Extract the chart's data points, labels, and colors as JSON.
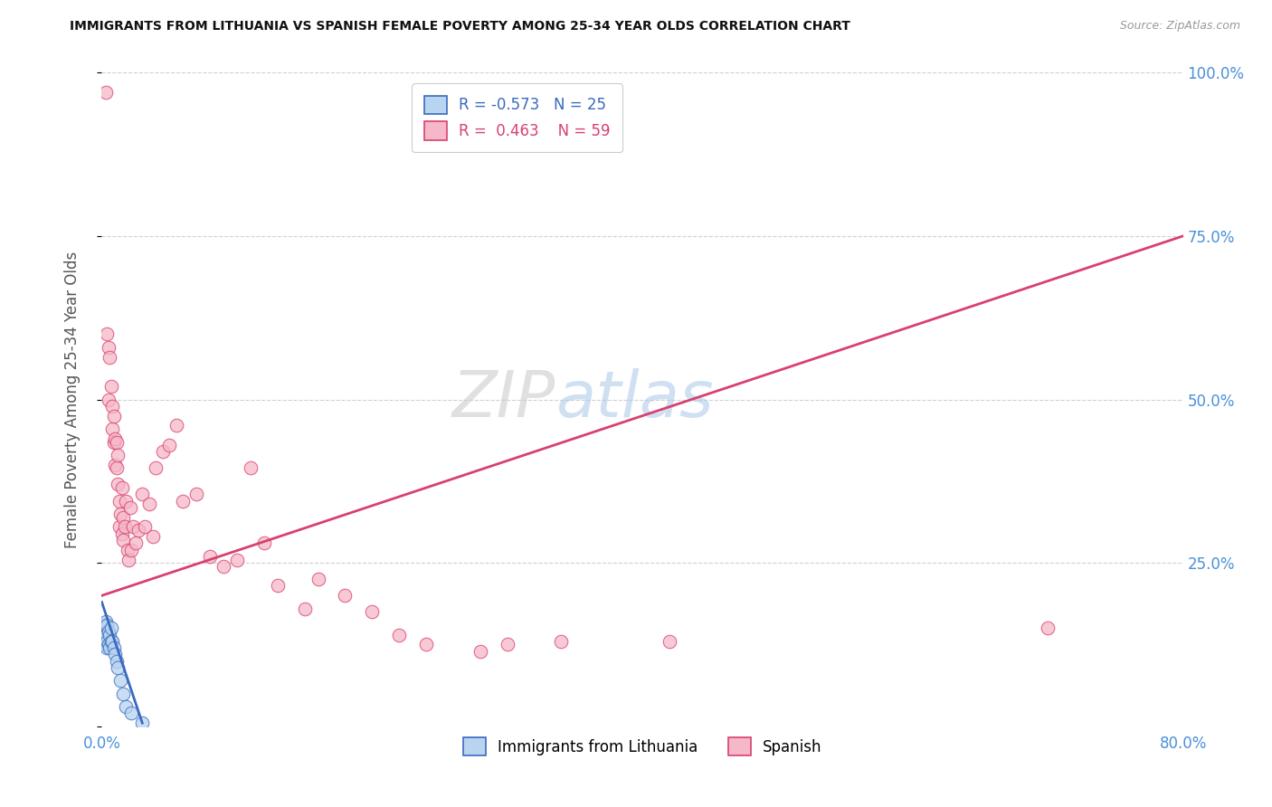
{
  "title": "IMMIGRANTS FROM LITHUANIA VS SPANISH FEMALE POVERTY AMONG 25-34 YEAR OLDS CORRELATION CHART",
  "source": "Source: ZipAtlas.com",
  "ylabel": "Female Poverty Among 25-34 Year Olds",
  "xlim": [
    0.0,
    0.8
  ],
  "ylim": [
    0.0,
    1.0
  ],
  "legend_r_blue": "-0.573",
  "legend_n_blue": "25",
  "legend_r_pink": "0.463",
  "legend_n_pink": "59",
  "legend_label_blue": "Immigrants from Lithuania",
  "legend_label_pink": "Spanish",
  "watermark_zip": "ZIP",
  "watermark_atlas": "atlas",
  "blue_scatter_x": [
    0.001,
    0.002,
    0.002,
    0.002,
    0.003,
    0.003,
    0.004,
    0.004,
    0.004,
    0.005,
    0.005,
    0.006,
    0.006,
    0.007,
    0.007,
    0.008,
    0.009,
    0.01,
    0.011,
    0.012,
    0.014,
    0.016,
    0.018,
    0.022,
    0.03
  ],
  "blue_scatter_y": [
    0.145,
    0.155,
    0.135,
    0.125,
    0.16,
    0.14,
    0.155,
    0.13,
    0.12,
    0.145,
    0.125,
    0.14,
    0.12,
    0.15,
    0.13,
    0.13,
    0.12,
    0.11,
    0.1,
    0.09,
    0.07,
    0.05,
    0.03,
    0.02,
    0.005
  ],
  "pink_scatter_x": [
    0.003,
    0.004,
    0.005,
    0.005,
    0.006,
    0.007,
    0.008,
    0.008,
    0.009,
    0.009,
    0.01,
    0.01,
    0.011,
    0.011,
    0.012,
    0.012,
    0.013,
    0.013,
    0.014,
    0.015,
    0.015,
    0.016,
    0.016,
    0.017,
    0.018,
    0.019,
    0.02,
    0.021,
    0.022,
    0.023,
    0.025,
    0.027,
    0.03,
    0.032,
    0.035,
    0.038,
    0.04,
    0.045,
    0.05,
    0.055,
    0.06,
    0.07,
    0.08,
    0.09,
    0.1,
    0.11,
    0.12,
    0.13,
    0.15,
    0.16,
    0.18,
    0.2,
    0.22,
    0.24,
    0.28,
    0.3,
    0.34,
    0.42,
    0.7
  ],
  "pink_scatter_y": [
    0.97,
    0.6,
    0.58,
    0.5,
    0.565,
    0.52,
    0.49,
    0.455,
    0.475,
    0.435,
    0.44,
    0.4,
    0.435,
    0.395,
    0.415,
    0.37,
    0.345,
    0.305,
    0.325,
    0.295,
    0.365,
    0.285,
    0.32,
    0.305,
    0.345,
    0.27,
    0.255,
    0.335,
    0.27,
    0.305,
    0.28,
    0.3,
    0.355,
    0.305,
    0.34,
    0.29,
    0.395,
    0.42,
    0.43,
    0.46,
    0.345,
    0.355,
    0.26,
    0.245,
    0.255,
    0.395,
    0.28,
    0.215,
    0.18,
    0.225,
    0.2,
    0.175,
    0.14,
    0.125,
    0.115,
    0.125,
    0.13,
    0.13,
    0.15
  ],
  "blue_line_x": [
    0.0,
    0.03
  ],
  "blue_line_y": [
    0.19,
    0.005
  ],
  "pink_line_x": [
    0.0,
    0.8
  ],
  "pink_line_y": [
    0.2,
    0.75
  ],
  "dot_color_blue": "#b8d4f0",
  "dot_color_pink": "#f5b8c8",
  "line_color_blue": "#3a6abf",
  "line_color_pink": "#d84070",
  "grid_color": "#d0d0d0",
  "title_color": "#111111",
  "axis_label_color": "#555555",
  "right_tick_color": "#4a90d9",
  "bottom_tick_color": "#4a90d9"
}
